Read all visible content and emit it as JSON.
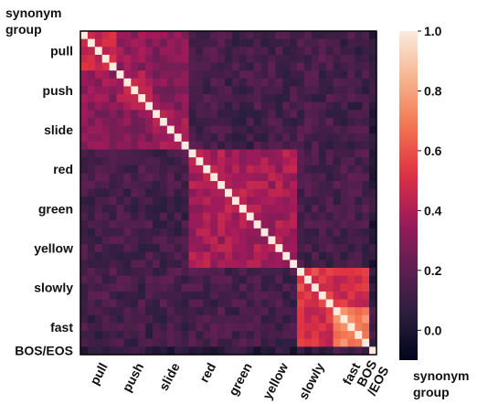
{
  "chart_data": {
    "type": "heatmap",
    "y_axis_title": [
      "synonym",
      "group"
    ],
    "x_axis_title": [
      "synonym",
      "group"
    ],
    "groups": [
      "pull",
      "push",
      "slide",
      "red",
      "green",
      "yellow",
      "slowly",
      "fast",
      "BOS/EOS"
    ],
    "x_tick_labels": [
      "pull",
      "push",
      "slide",
      "red",
      "green",
      "yellow",
      "slowly",
      "fast",
      "BOS\n/EOS"
    ],
    "cells_per_group": [
      5,
      5,
      5,
      5,
      5,
      5,
      5,
      5,
      1
    ],
    "color_scale": {
      "min": -0.1,
      "max": 1.0,
      "ticks": [
        0.0,
        0.2,
        0.4,
        0.6,
        0.8,
        1.0
      ]
    },
    "colormap_stops": [
      "#03051a",
      "#2c1e3e",
      "#611f53",
      "#a11a5b",
      "#e13342",
      "#f37651",
      "#f6b48e",
      "#faebdd"
    ],
    "block_means": [
      [
        0.45,
        0.33,
        0.32,
        0.14,
        0.13,
        0.13,
        0.14,
        0.12,
        0.05
      ],
      [
        0.33,
        0.4,
        0.3,
        0.14,
        0.13,
        0.13,
        0.13,
        0.12,
        0.05
      ],
      [
        0.32,
        0.3,
        0.38,
        0.14,
        0.12,
        0.13,
        0.14,
        0.12,
        0.05
      ],
      [
        0.14,
        0.14,
        0.14,
        0.4,
        0.38,
        0.38,
        0.14,
        0.14,
        0.05
      ],
      [
        0.13,
        0.13,
        0.12,
        0.38,
        0.4,
        0.38,
        0.13,
        0.13,
        0.05
      ],
      [
        0.13,
        0.13,
        0.13,
        0.38,
        0.38,
        0.4,
        0.13,
        0.13,
        0.05
      ],
      [
        0.14,
        0.13,
        0.14,
        0.14,
        0.13,
        0.13,
        0.55,
        0.5,
        0.1
      ],
      [
        0.12,
        0.12,
        0.12,
        0.14,
        0.13,
        0.13,
        0.5,
        0.7,
        0.15
      ],
      [
        0.05,
        0.05,
        0.05,
        0.05,
        0.05,
        0.05,
        0.1,
        0.15,
        1.0
      ]
    ],
    "diagonal_value": 1.0,
    "noise_amplitude": 0.08,
    "grid": false,
    "colorbar_placement": "right"
  }
}
